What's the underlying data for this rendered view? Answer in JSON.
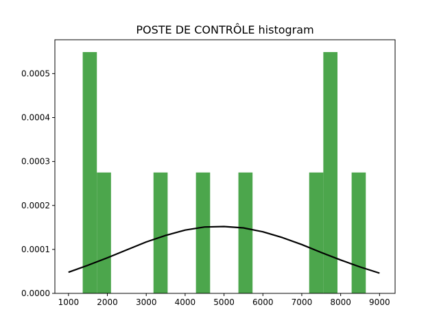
{
  "chart_data": {
    "type": "bar",
    "title": "POSTE DE CONTRÔLE histogram",
    "xlabel": "",
    "ylabel": "",
    "xlim": [
      650,
      9400
    ],
    "ylim": [
      0,
      0.000577
    ],
    "x_ticks": [
      1000,
      2000,
      3000,
      4000,
      5000,
      6000,
      7000,
      8000,
      9000
    ],
    "y_ticks": [
      0.0,
      0.0001,
      0.0002,
      0.0003,
      0.0004,
      0.0005
    ],
    "y_tick_labels": [
      "0.0000",
      "0.0001",
      "0.0002",
      "0.0003",
      "0.0004",
      "0.0005"
    ],
    "grid": false,
    "bar_color": "#4ca64c",
    "curve_color": "#000000",
    "bins": [
      {
        "x0": 1366,
        "x1": 1730,
        "value": 0.000549
      },
      {
        "x0": 1730,
        "x1": 2094,
        "value": 0.000275
      },
      {
        "x0": 3186,
        "x1": 3550,
        "value": 0.000275
      },
      {
        "x0": 4278,
        "x1": 4642,
        "value": 0.000275
      },
      {
        "x0": 5370,
        "x1": 5734,
        "value": 0.000275
      },
      {
        "x0": 7190,
        "x1": 7554,
        "value": 0.000275
      },
      {
        "x0": 7554,
        "x1": 7918,
        "value": 0.000549
      },
      {
        "x0": 8282,
        "x1": 8646,
        "value": 0.000275
      }
    ],
    "curve": {
      "name": "",
      "x": [
        1000,
        1500,
        2000,
        2500,
        3000,
        3500,
        4000,
        4500,
        5000,
        5500,
        6000,
        6500,
        7000,
        7500,
        8000,
        8500,
        9000
      ],
      "y": [
        4.8e-05,
        6.4e-05,
        8.1e-05,
        9.9e-05,
        0.000117,
        0.000132,
        0.000144,
        0.000151,
        0.000152,
        0.000149,
        0.00014,
        0.000127,
        0.000111,
        9.3e-05,
        7.6e-05,
        6e-05,
        4.6e-05
      ]
    }
  }
}
